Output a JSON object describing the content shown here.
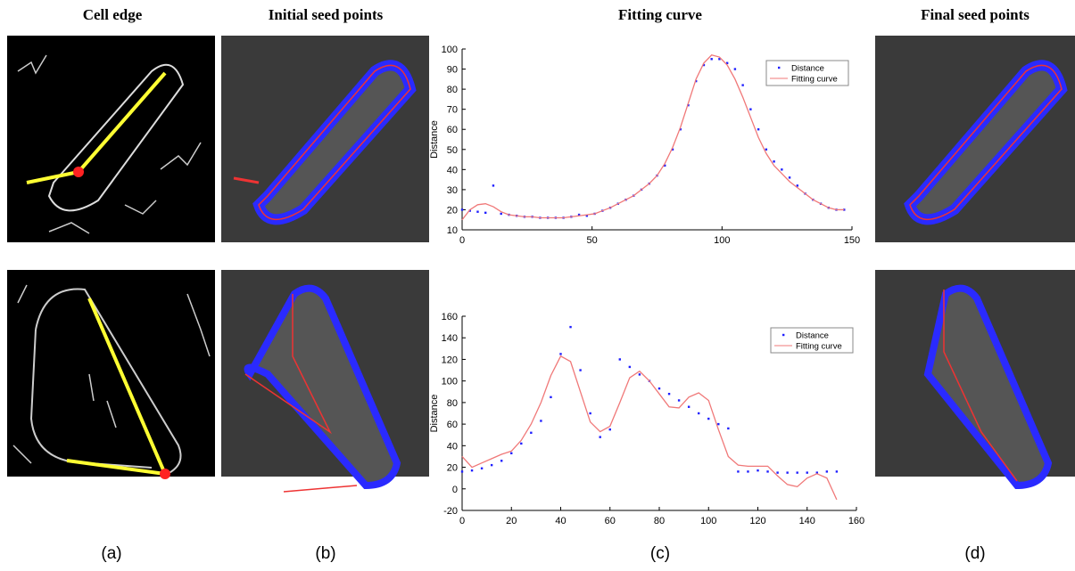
{
  "headers": [
    "Cell edge",
    "Initial seed points",
    "Fitting curve",
    "Final seed points"
  ],
  "panel_labels": [
    "(a)",
    "(b)",
    "(c)",
    "(d)"
  ],
  "chart_data": [
    {
      "type": "scatter",
      "ylabel": "Distance",
      "legend": "upper right",
      "xlim": [
        0,
        150
      ],
      "ylim": [
        10,
        100
      ],
      "xticks": [
        0,
        50,
        100,
        150
      ],
      "yticks": [
        10,
        20,
        30,
        40,
        50,
        60,
        70,
        80,
        90,
        100
      ],
      "x": [
        0,
        3,
        6,
        9,
        12,
        15,
        18,
        21,
        24,
        27,
        30,
        33,
        36,
        39,
        42,
        45,
        48,
        51,
        54,
        57,
        60,
        63,
        66,
        69,
        72,
        75,
        78,
        81,
        84,
        87,
        90,
        93,
        96,
        99,
        102,
        105,
        108,
        111,
        114,
        117,
        120,
        123,
        126,
        129,
        132,
        135,
        138,
        141,
        144,
        147
      ],
      "series": [
        {
          "name": "Distance",
          "type": "scatter",
          "color": "#1f1fff",
          "values": [
            20,
            19.5,
            19,
            18.5,
            32,
            18,
            17.5,
            17,
            16.5,
            16.5,
            16,
            16,
            16,
            16,
            16.5,
            17.5,
            17,
            18,
            19.5,
            21,
            23,
            25,
            27,
            30,
            33,
            37,
            42,
            50,
            60,
            72,
            84,
            92,
            95,
            95,
            93,
            90,
            82,
            70,
            60,
            50,
            44,
            40,
            36,
            32,
            28,
            25,
            23,
            21,
            20,
            20
          ]
        },
        {
          "name": "Fitting curve",
          "type": "line",
          "color": "#f07878",
          "values": [
            15,
            20,
            22.5,
            23,
            21.5,
            19,
            17.5,
            17,
            16.5,
            16.5,
            16,
            16,
            16,
            16,
            16.5,
            17,
            17.5,
            18,
            19.5,
            21,
            23,
            25,
            27,
            30,
            33,
            37,
            43,
            51,
            61,
            73,
            85,
            93,
            97,
            96,
            92,
            85,
            76,
            66,
            56,
            48,
            42,
            38,
            34,
            31,
            28,
            25,
            23,
            21,
            20,
            20
          ]
        }
      ]
    },
    {
      "type": "scatter",
      "ylabel": "Distance",
      "legend": "upper right",
      "xlim": [
        0,
        160
      ],
      "ylim": [
        -20,
        160
      ],
      "xticks": [
        0,
        20,
        40,
        60,
        80,
        100,
        120,
        140,
        160
      ],
      "yticks": [
        -20,
        0,
        20,
        40,
        60,
        80,
        100,
        120,
        140,
        160
      ],
      "x": [
        0,
        4,
        8,
        12,
        16,
        20,
        24,
        28,
        32,
        36,
        40,
        44,
        48,
        52,
        56,
        60,
        64,
        68,
        72,
        76,
        80,
        84,
        88,
        92,
        96,
        100,
        104,
        108,
        112,
        116,
        120,
        124,
        128,
        132,
        136,
        140,
        144,
        148,
        152
      ],
      "series": [
        {
          "name": "Distance",
          "type": "scatter",
          "color": "#1f1fff",
          "values": [
            16,
            17,
            19,
            22,
            26,
            33,
            42,
            52,
            63,
            85,
            125,
            150,
            110,
            70,
            48,
            55,
            120,
            113,
            106,
            100,
            93,
            88,
            82,
            76,
            70,
            65,
            60,
            56,
            16,
            16,
            17,
            16,
            15,
            15,
            15,
            15,
            15,
            16,
            16
          ]
        },
        {
          "name": "Fitting curve",
          "type": "line",
          "color": "#f07878",
          "values": [
            30,
            20,
            24,
            28,
            32,
            35,
            45,
            60,
            80,
            105,
            123,
            118,
            90,
            62,
            53,
            58,
            80,
            103,
            109,
            100,
            88,
            76,
            75,
            85,
            89,
            82,
            55,
            30,
            22,
            21,
            21,
            21,
            12,
            4,
            2,
            10,
            14,
            10,
            -10
          ]
        }
      ]
    }
  ]
}
